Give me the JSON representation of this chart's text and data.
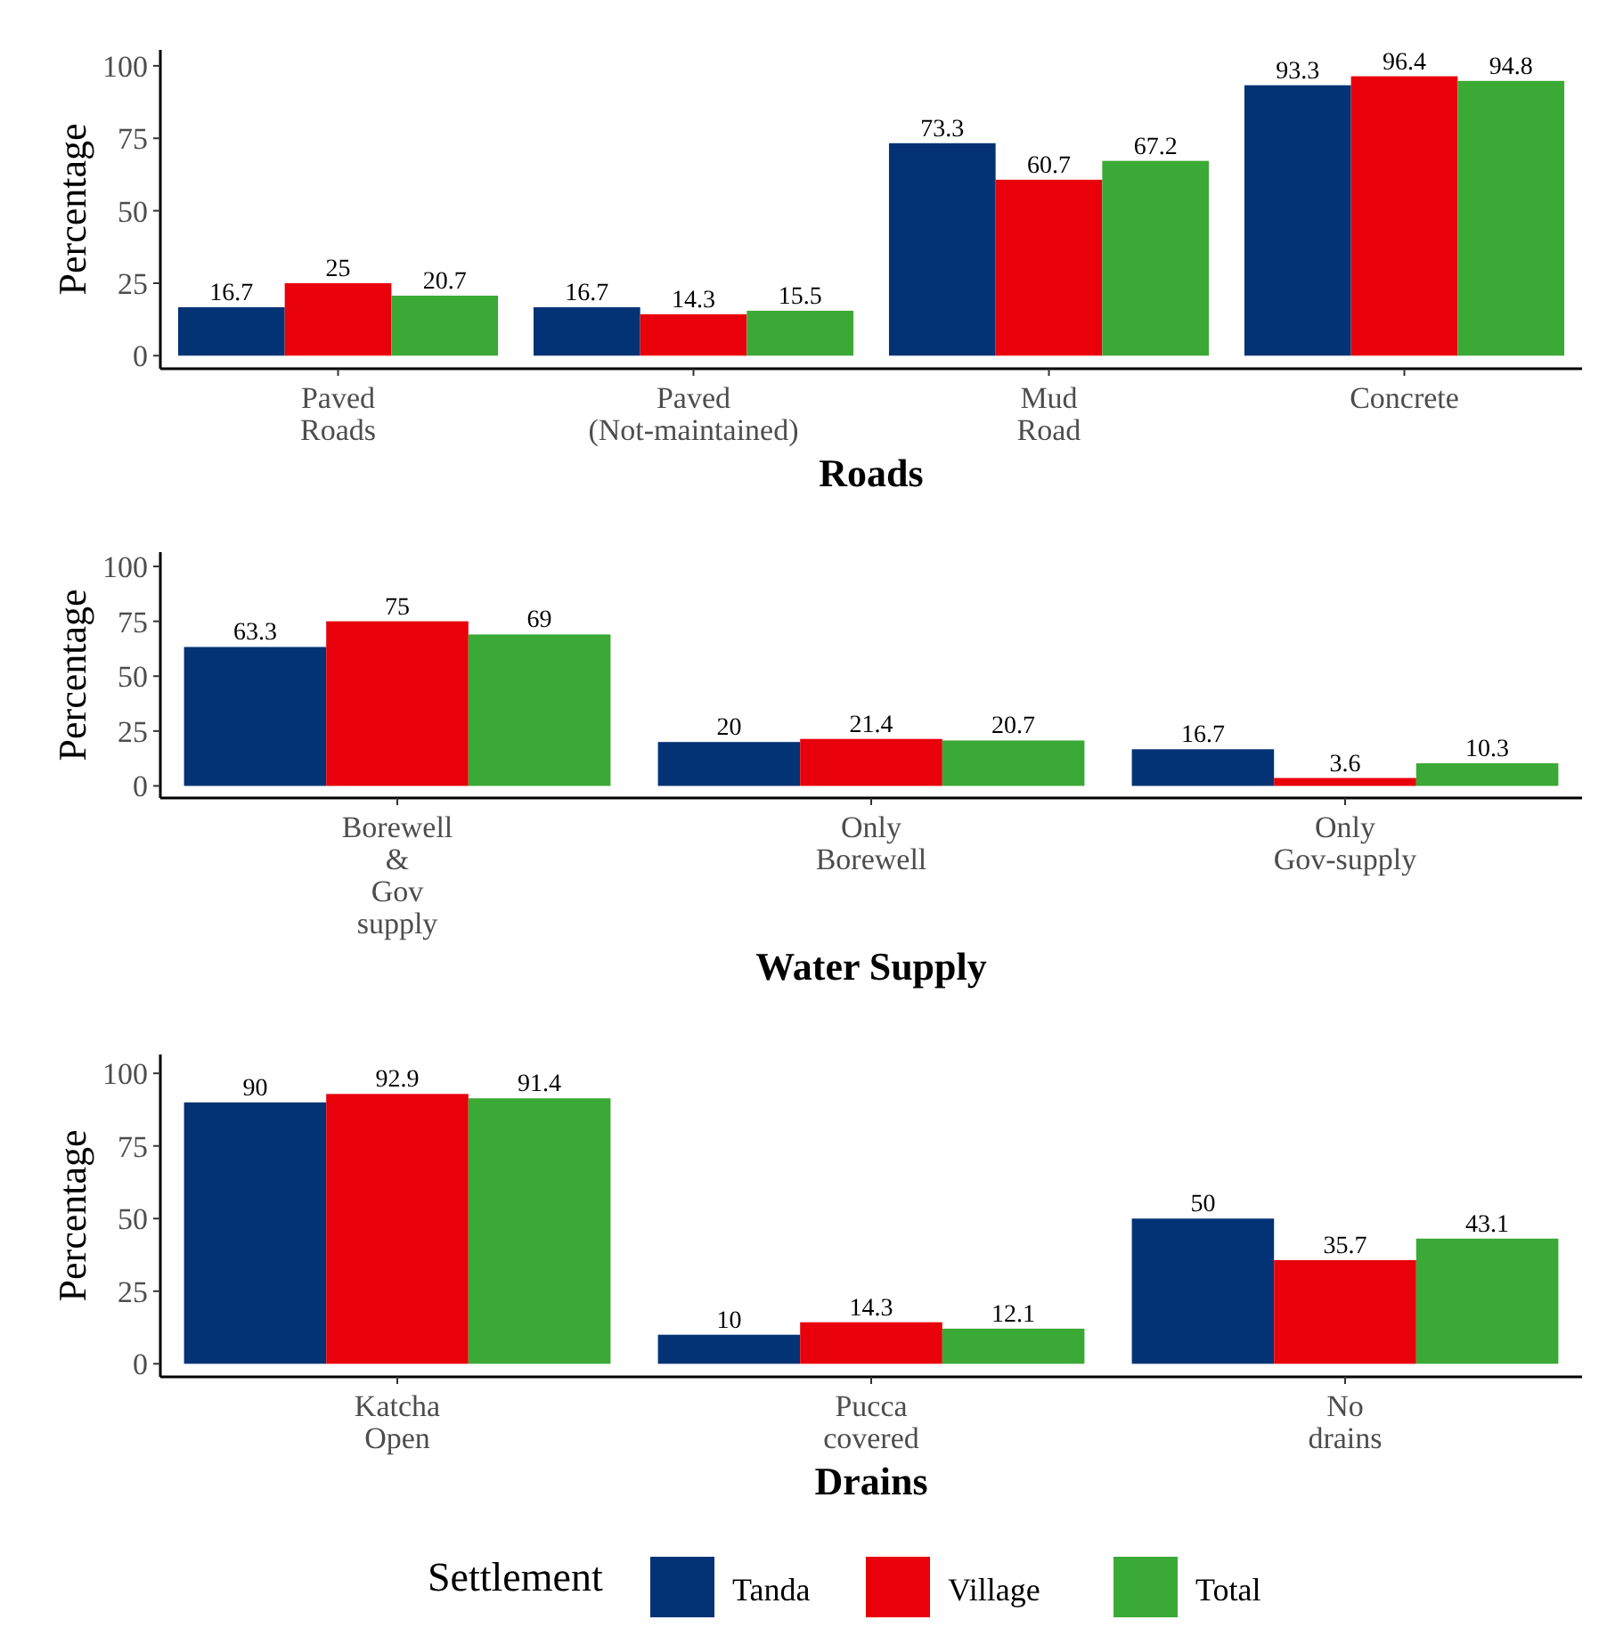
{
  "chart_data": [
    {
      "type": "bar",
      "xlabel": "Roads",
      "ylabel": "Percentage",
      "categories": [
        "Paved\nRoads",
        "Paved\n(Not-maintained)",
        "Mud\nRoad",
        "Concrete"
      ],
      "ylim": [
        -4.5,
        105.5
      ],
      "yticks": [
        0,
        25,
        50,
        75,
        100
      ],
      "data_labels": true,
      "series": [
        {
          "color": "#043375",
          "values": [
            16.7,
            16.7,
            73.3,
            93.3
          ]
        },
        {
          "color": "#e8000b",
          "values": [
            25,
            14.3,
            60.7,
            96.4
          ]
        },
        {
          "color": "#3aa935",
          "values": [
            20.7,
            15.5,
            67.2,
            94.8
          ]
        }
      ]
    },
    {
      "type": "bar",
      "xlabel": "Water Supply",
      "ylabel": "Percentage",
      "categories": [
        "Borewell\n&\nGov\nsupply",
        "Only\nBorewell",
        "Only\nGov-supply"
      ],
      "ylim": [
        -5.5,
        106.5
      ],
      "yticks": [
        0,
        25,
        50,
        75,
        100
      ],
      "data_labels": true,
      "series": [
        {
          "color": "#043375",
          "values": [
            63.3,
            20,
            16.7
          ]
        },
        {
          "color": "#e8000b",
          "values": [
            75,
            21.4,
            3.6
          ]
        },
        {
          "color": "#3aa935",
          "values": [
            69,
            20.7,
            10.3
          ]
        }
      ]
    },
    {
      "type": "bar",
      "xlabel": "Drains",
      "ylabel": "Percentage",
      "categories": [
        "Katcha\nOpen",
        "Pucca\ncovered",
        "No\ndrains"
      ],
      "ylim": [
        -4.5,
        106.5
      ],
      "yticks": [
        0,
        25,
        50,
        75,
        100
      ],
      "data_labels": true,
      "legend": "bottom",
      "legend_title": "Settlement",
      "series": [
        {
          "name": "Tanda",
          "color": "#043375",
          "values": [
            90,
            10,
            50
          ]
        },
        {
          "name": "Village",
          "color": "#e8000b",
          "values": [
            92.9,
            14.3,
            35.7
          ]
        },
        {
          "name": "Total",
          "color": "#3aa935",
          "values": [
            91.4,
            12.1,
            43.1
          ]
        }
      ]
    }
  ]
}
